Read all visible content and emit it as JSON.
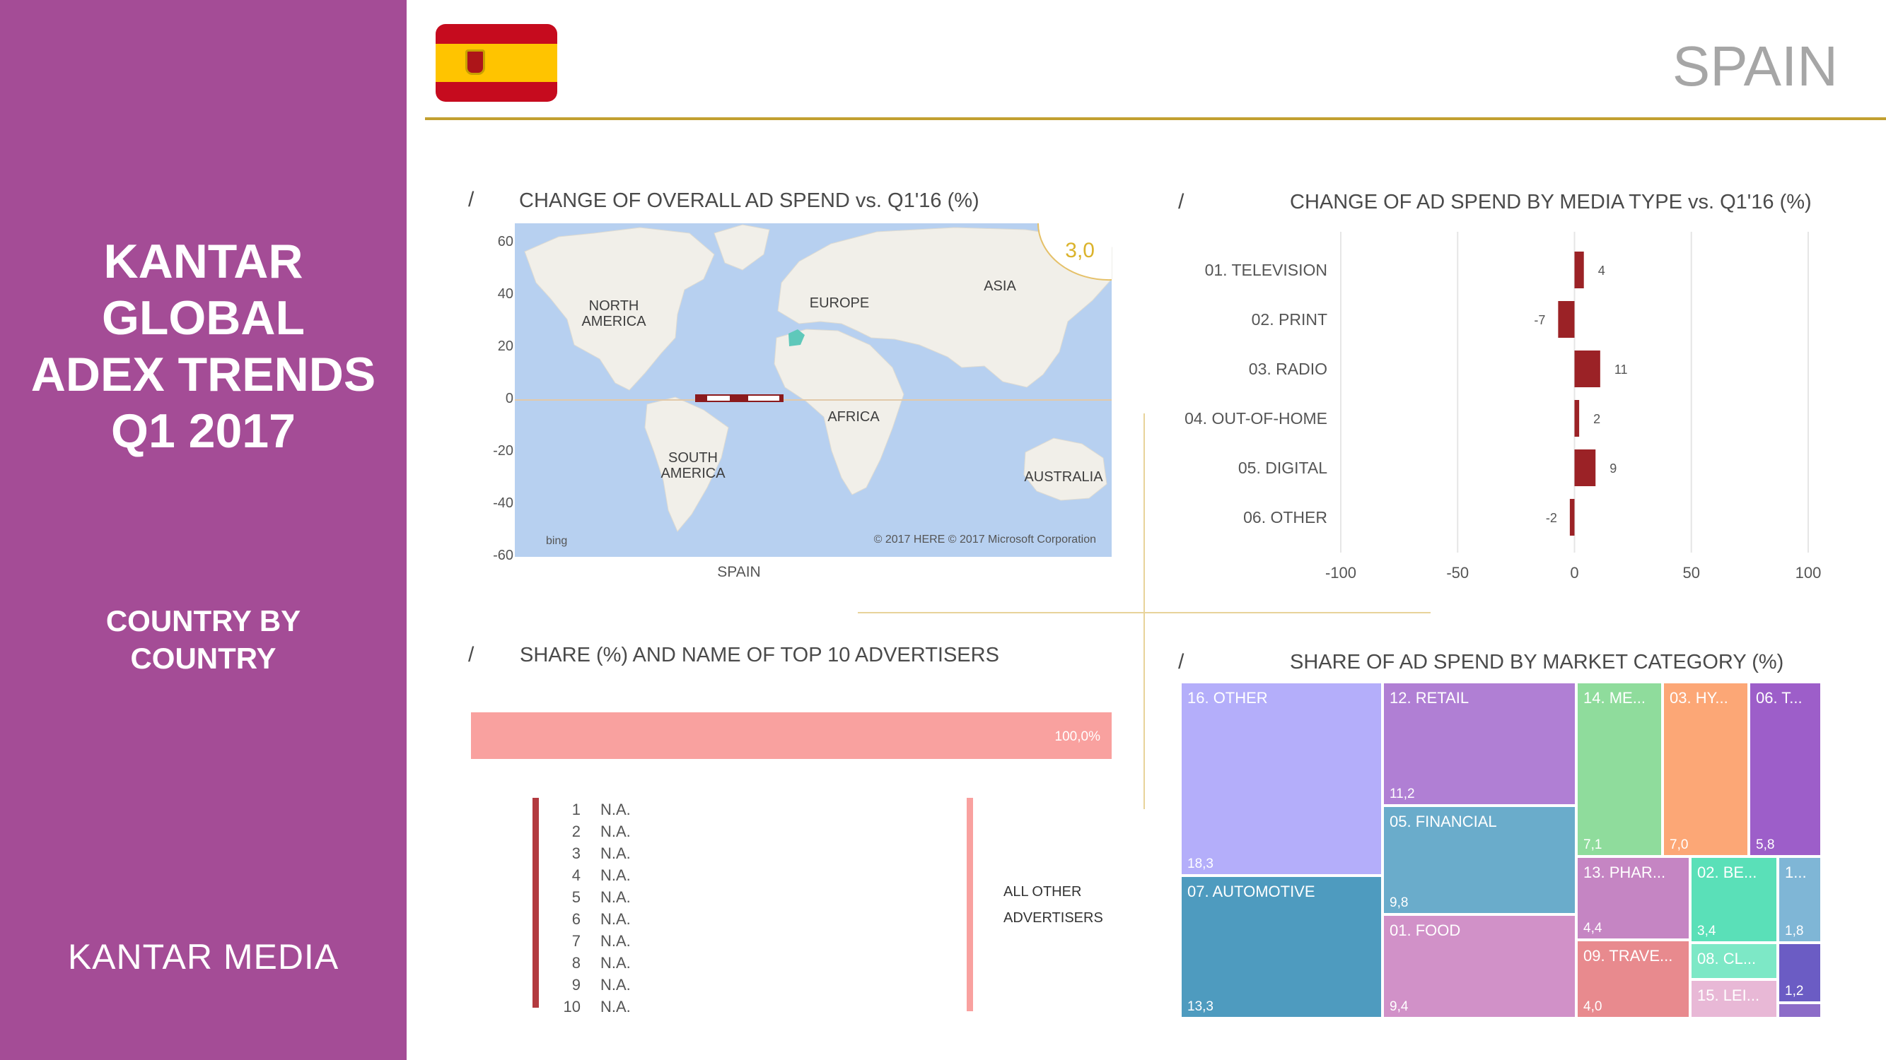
{
  "sidebar": {
    "title_lines": [
      "KANTAR",
      "GLOBAL",
      "ADEX TRENDS",
      "Q1 2017"
    ],
    "subtitle_lines": [
      "COUNTRY BY",
      "COUNTRY"
    ],
    "logo": "KANTAR MEDIA"
  },
  "header": {
    "country": "SPAIN"
  },
  "colors": {
    "sidebar": "#a44c96",
    "accent_line": "#c2a030",
    "bar": "#9b2226",
    "share_bar": "#f9a19f"
  },
  "sections": {
    "overall": {
      "slash": "/",
      "title": "CHANGE OF OVERALL AD SPEND vs. Q1'16 (%)"
    },
    "media": {
      "slash": "/",
      "title": "CHANGE OF AD SPEND BY MEDIA TYPE vs. Q1'16 (%)"
    },
    "advertisers": {
      "slash": "/",
      "title": "SHARE (%) AND NAME OF TOP 10 ADVERTISERS"
    },
    "category": {
      "slash": "/",
      "title": "SHARE OF AD SPEND BY MARKET CATEGORY (%)"
    }
  },
  "map": {
    "value": "3,0",
    "yticks": [
      "60",
      "40",
      "20",
      "0",
      "-20",
      "-40",
      "-60"
    ],
    "xlabel": "SPAIN",
    "continents": [
      "NORTH",
      "AMERICA",
      "EUROPE",
      "ASIA",
      "AFRICA",
      "SOUTH",
      "AMERICA",
      "AUSTRALIA"
    ],
    "credit": "© 2017 HERE   © 2017 Microsoft Corporation",
    "bing": "bing"
  },
  "chart_data": [
    {
      "type": "map",
      "title": "CHANGE OF OVERALL AD SPEND vs. Q1'16 (%)",
      "xlabel": "SPAIN",
      "value": 3.0,
      "ylim": [
        -60,
        60
      ]
    },
    {
      "type": "bar",
      "orientation": "horizontal",
      "title": "CHANGE OF AD SPEND BY MEDIA TYPE vs. Q1'16 (%)",
      "categories": [
        "01. TELEVISION",
        "02. PRINT",
        "03. RADIO",
        "04. OUT-OF-HOME",
        "05. DIGITAL",
        "06. OTHER"
      ],
      "values": [
        4,
        -7,
        11,
        2,
        9,
        -2
      ],
      "xlim": [
        -100,
        100
      ],
      "xticks": [
        "-100",
        "-50",
        "0",
        "50",
        "100"
      ],
      "grid": true
    },
    {
      "type": "bar",
      "title": "SHARE (%) AND NAME OF TOP 10 ADVERTISERS",
      "categories": [
        "ALL OTHER ADVERTISERS"
      ],
      "values": [
        100.0
      ],
      "value_label": "100,0%",
      "ranks": [
        "1",
        "2",
        "3",
        "4",
        "5",
        "6",
        "7",
        "8",
        "9",
        "10"
      ],
      "names": [
        "N.A.",
        "N.A.",
        "N.A.",
        "N.A.",
        "N.A.",
        "N.A.",
        "N.A.",
        "N.A.",
        "N.A.",
        "N.A."
      ],
      "other_label": [
        "ALL OTHER",
        "ADVERTISERS"
      ]
    },
    {
      "type": "treemap",
      "title": "SHARE OF AD SPEND BY MARKET CATEGORY (%)",
      "items": [
        {
          "name": "16. OTHER",
          "value": "18,3",
          "color": "#b4aefa"
        },
        {
          "name": "07. AUTOMOTIVE",
          "value": "13,3",
          "color": "#4e9bbf"
        },
        {
          "name": "12. RETAIL",
          "value": "11,2",
          "color": "#b07fd4"
        },
        {
          "name": "05. FINANCIAL",
          "value": "9,8",
          "color": "#6aaccb"
        },
        {
          "name": "01. FOOD",
          "value": "9,4",
          "color": "#d191c8"
        },
        {
          "name": "14. ME...",
          "value": "7,1",
          "color": "#8fdc9c"
        },
        {
          "name": "03. HY...",
          "value": "7,0",
          "color": "#fca776"
        },
        {
          "name": "06. T...",
          "value": "5,8",
          "color": "#9d5ec9"
        },
        {
          "name": "13. PHAR...",
          "value": "4,4",
          "color": "#c585c3"
        },
        {
          "name": "09. TRAVE...",
          "value": "4,0",
          "color": "#e88a8e"
        },
        {
          "name": "02. BE...",
          "value": "3,4",
          "color": "#5ae0b8"
        },
        {
          "name": "08. CL...",
          "value": "",
          "color": "#7de8c6"
        },
        {
          "name": "15. LEI...",
          "value": "",
          "color": "#e8b8d6"
        },
        {
          "name": "1...",
          "value": "1,8",
          "color": "#7fb6d6"
        },
        {
          "name": "",
          "value": "1,2",
          "color": "#6b5cc4"
        },
        {
          "name": "",
          "value": "",
          "color": "#8c6cc8"
        }
      ]
    }
  ]
}
